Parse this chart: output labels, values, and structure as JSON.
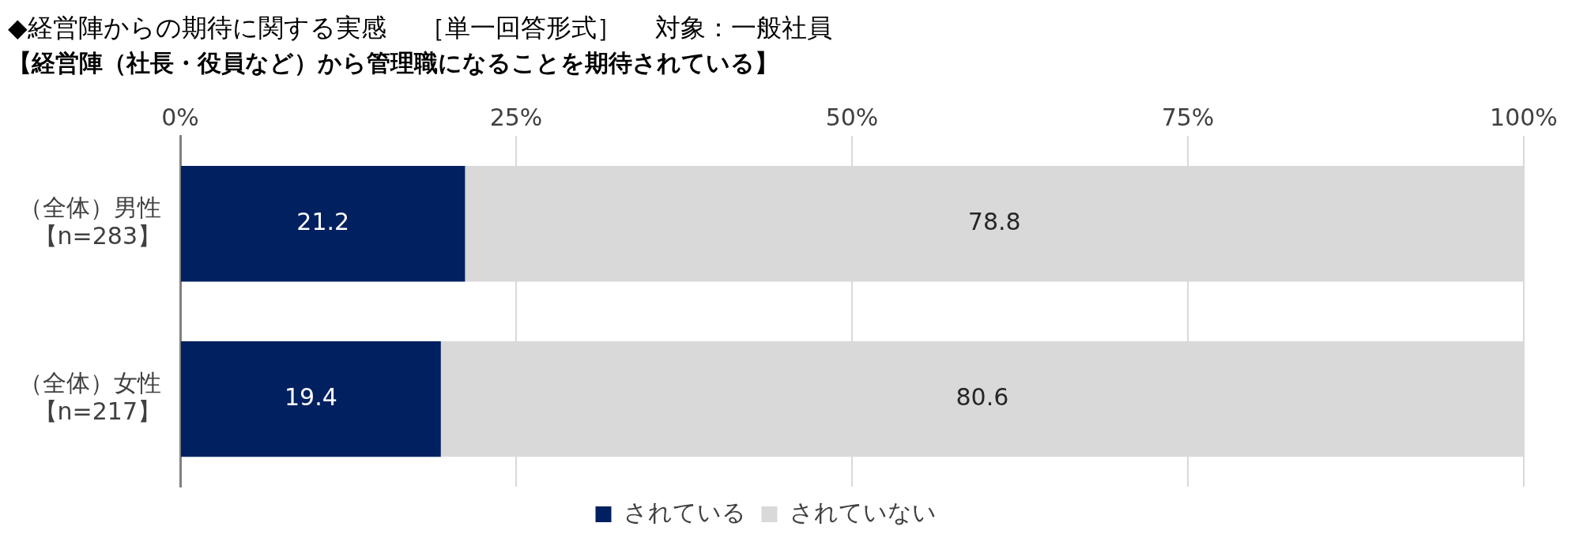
{
  "chart_data": {
    "type": "bar",
    "orientation": "horizontal",
    "stacked": true,
    "title": "◆経営陣からの期待に関する実感　 ［単一回答形式］　 対象：一般社員",
    "subtitle": "【経営陣（社長・役員など）から管理職になることを期待されている】",
    "categories": [
      "（全体）男性【n=283】",
      "（全体）女性【n=217】"
    ],
    "series": [
      {
        "name": "されている",
        "color": "#002060",
        "values": [
          21.2,
          19.4
        ]
      },
      {
        "name": "されていない",
        "color": "#d9d9d9",
        "values": [
          78.8,
          80.6
        ]
      }
    ],
    "xlim": [
      0,
      100
    ],
    "xticks": [
      {
        "value": 0,
        "label": "0%"
      },
      {
        "value": 25,
        "label": "25%"
      },
      {
        "value": 50,
        "label": "50%"
      },
      {
        "value": 75,
        "label": "75%"
      },
      {
        "value": 100,
        "label": "100%"
      }
    ],
    "grid": "x",
    "legend": "bottom",
    "data_labels": true
  }
}
